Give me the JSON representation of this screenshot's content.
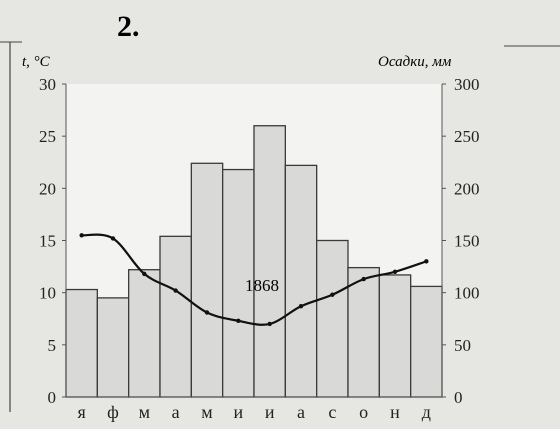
{
  "chart_data": {
    "type": "bar",
    "title": "2.",
    "ylabel_left": "t, °C",
    "ylabel_right": "Осадки, мм",
    "categories": [
      "я",
      "ф",
      "м",
      "а",
      "м",
      "и",
      "и",
      "а",
      "с",
      "о",
      "н",
      "д"
    ],
    "yticks_left": [
      "0",
      "5",
      "10",
      "15",
      "20",
      "25",
      "30"
    ],
    "yticks_right": [
      "0",
      "50",
      "100",
      "150",
      "200",
      "250",
      "300"
    ],
    "ylim_left": [
      0,
      30
    ],
    "ylim_right": [
      0,
      300
    ],
    "annotation": "1868",
    "series": [
      {
        "kind": "bar",
        "axis": "right",
        "values": [
          103,
          95,
          122,
          154,
          224,
          218,
          260,
          222,
          150,
          124,
          117,
          106
        ]
      },
      {
        "kind": "line",
        "axis": "left",
        "values": [
          15.5,
          15.2,
          11.8,
          10.2,
          8.1,
          7.3,
          7.0,
          8.7,
          9.8,
          11.3,
          12.0,
          13.0
        ]
      }
    ],
    "grid": false,
    "legend": "none"
  }
}
